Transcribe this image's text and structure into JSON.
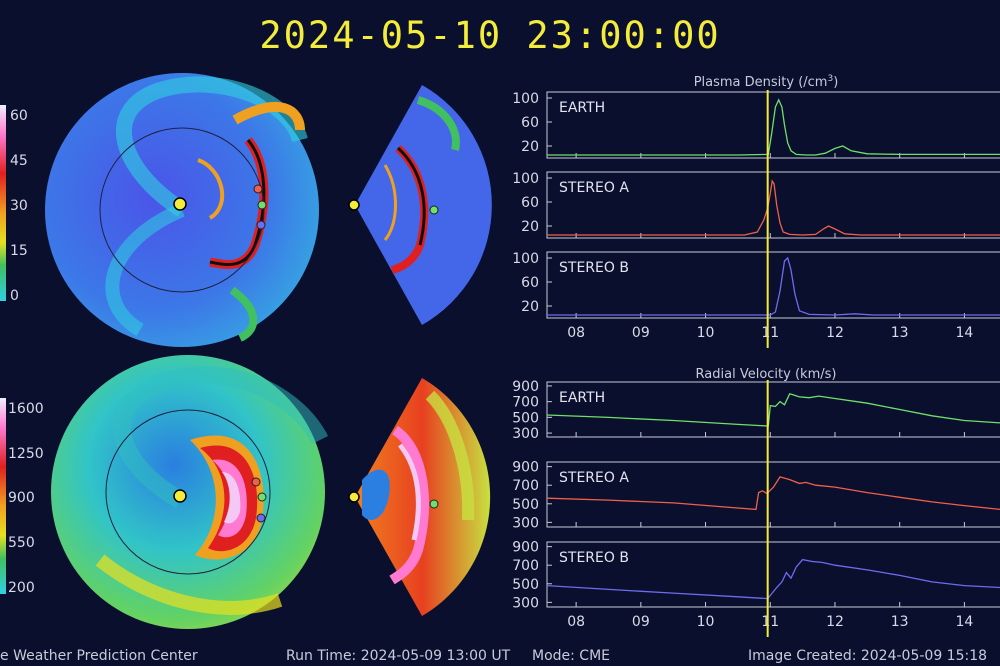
{
  "header": {
    "timestamp": "2024-05-10 23:00:00"
  },
  "footer": {
    "center_name": "e Weather Prediction Center",
    "run_time": "Run Time: 2024-05-09 13:00 UT",
    "mode": "Mode: CME",
    "image_created": "Image Created: 2024-05-09 15:18"
  },
  "maps": {
    "density_colorbar_ticks": [
      "60",
      "45",
      "30",
      "15",
      "0"
    ],
    "velocity_colorbar_ticks": [
      "1600",
      "1250",
      "900",
      "550",
      "200"
    ]
  },
  "colors": {
    "earth": "#6fe06a",
    "stereo_a": "#f06048",
    "stereo_b": "#6c6cf0",
    "marker": "#f3ec3a",
    "density_background": "#3f5ee0",
    "velocity_background": "#34c8b8"
  },
  "chart_data": [
    {
      "type": "line",
      "title": "Plasma Density (/cm3)",
      "title_main": "Plasma Density (/cm",
      "title_sup": "3",
      "title_end": ")",
      "x_tick_labels": [
        "08",
        "09",
        "10",
        "11",
        "12",
        "13",
        "14"
      ],
      "x_ticks": [
        8,
        9,
        10,
        11,
        12,
        13,
        14
      ],
      "xlim": [
        7.55,
        14.55
      ],
      "current_time_marker": 10.96,
      "panels": [
        {
          "name": "EARTH",
          "ylim": [
            0,
            110
          ],
          "y_ticks": [
            20,
            60,
            100
          ],
          "y_tick_labels": [
            "20",
            "60",
            "100"
          ],
          "x": [
            7.55,
            10.5,
            10.97,
            11.02,
            11.08,
            11.13,
            11.18,
            11.22,
            11.27,
            11.32,
            11.4,
            11.55,
            11.7,
            11.85,
            12.0,
            12.12,
            12.25,
            12.5,
            13.0,
            14.0,
            14.55
          ],
          "y": [
            5,
            5,
            6,
            40,
            85,
            97,
            85,
            55,
            25,
            12,
            6,
            5,
            5,
            8,
            16,
            20,
            12,
            7,
            6,
            6,
            6
          ]
        },
        {
          "name": "STEREO A",
          "ylim": [
            0,
            110
          ],
          "y_ticks": [
            20,
            60,
            100
          ],
          "y_tick_labels": [
            "20",
            "60",
            "100"
          ],
          "x": [
            7.55,
            10.6,
            10.8,
            10.9,
            10.96,
            11.0,
            11.03,
            11.06,
            11.1,
            11.15,
            11.2,
            11.3,
            11.5,
            11.7,
            11.82,
            11.9,
            12.0,
            12.15,
            12.4,
            13.0,
            14.0,
            14.55
          ],
          "y": [
            5,
            5,
            10,
            30,
            50,
            75,
            95,
            90,
            55,
            25,
            10,
            6,
            5,
            6,
            15,
            20,
            15,
            7,
            5,
            5,
            5,
            5
          ]
        },
        {
          "name": "STEREO B",
          "ylim": [
            0,
            110
          ],
          "y_ticks": [
            20,
            60,
            100
          ],
          "y_tick_labels": [
            "20",
            "60",
            "100"
          ],
          "x": [
            7.55,
            10.0,
            11.0,
            11.08,
            11.15,
            11.22,
            11.27,
            11.32,
            11.38,
            11.45,
            11.6,
            12.0,
            12.3,
            12.6,
            13.0,
            14.0,
            14.55
          ],
          "y": [
            5,
            5,
            5,
            10,
            45,
            95,
            100,
            80,
            40,
            12,
            6,
            5,
            7,
            5,
            5,
            5,
            5
          ]
        }
      ]
    },
    {
      "type": "line",
      "title": "Radial Velocity (km/s)",
      "x_tick_labels": [
        "08",
        "09",
        "10",
        "11",
        "12",
        "13",
        "14"
      ],
      "x_ticks": [
        8,
        9,
        10,
        11,
        12,
        13,
        14
      ],
      "xlim": [
        7.55,
        14.55
      ],
      "current_time_marker": 10.96,
      "panels": [
        {
          "name": "EARTH",
          "ylim": [
            250,
            950
          ],
          "y_ticks": [
            300,
            500,
            700,
            900
          ],
          "y_tick_labels": [
            "300",
            "500",
            "700",
            "900"
          ],
          "x": [
            7.55,
            8.5,
            9.5,
            10.5,
            10.97,
            11.0,
            11.08,
            11.15,
            11.22,
            11.3,
            11.38,
            11.45,
            11.6,
            11.75,
            12.0,
            12.5,
            13.0,
            13.5,
            14.0,
            14.55
          ],
          "y": [
            530,
            500,
            460,
            410,
            390,
            650,
            640,
            700,
            660,
            800,
            780,
            760,
            750,
            770,
            740,
            680,
            600,
            520,
            460,
            430
          ]
        },
        {
          "name": "STEREO A",
          "ylim": [
            250,
            950
          ],
          "y_ticks": [
            300,
            500,
            700,
            900
          ],
          "y_tick_labels": [
            "300",
            "500",
            "700",
            "900"
          ],
          "x": [
            7.55,
            8.5,
            9.5,
            10.4,
            10.78,
            10.82,
            10.88,
            10.95,
            11.05,
            11.15,
            11.3,
            11.45,
            11.55,
            11.7,
            12.0,
            12.5,
            13.0,
            13.5,
            14.0,
            14.55
          ],
          "y": [
            560,
            540,
            510,
            460,
            440,
            620,
            640,
            610,
            680,
            790,
            760,
            720,
            730,
            700,
            680,
            620,
            570,
            520,
            480,
            440
          ]
        },
        {
          "name": "STEREO B",
          "ylim": [
            250,
            950
          ],
          "y_ticks": [
            300,
            500,
            700,
            900
          ],
          "y_tick_labels": [
            "300",
            "500",
            "700",
            "900"
          ],
          "x": [
            7.55,
            8.5,
            9.5,
            10.5,
            10.96,
            11.1,
            11.18,
            11.25,
            11.32,
            11.4,
            11.5,
            11.65,
            11.8,
            12.0,
            12.5,
            13.0,
            13.5,
            14.0,
            14.55
          ],
          "y": [
            480,
            440,
            400,
            360,
            340,
            460,
            520,
            620,
            560,
            680,
            760,
            740,
            730,
            700,
            650,
            590,
            520,
            480,
            460
          ]
        }
      ]
    }
  ]
}
